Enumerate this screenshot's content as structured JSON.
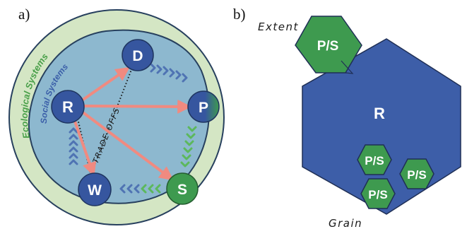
{
  "panel_a": {
    "label": "a)",
    "outer_label": "Ecological Systems",
    "inner_label": "Social Systems",
    "tradeoff_label": "TRADE-OFFS",
    "nodes": {
      "R": "R",
      "D": "D",
      "P": "P",
      "S": "S",
      "W": "W"
    }
  },
  "panel_b": {
    "label": "b)",
    "extent_label": "Extent",
    "grain_label": "Grain",
    "region_label": "R",
    "extent_hex_label": "P/S",
    "grain_hex_labels": [
      "P/S",
      "P/S",
      "P/S"
    ]
  },
  "colors": {
    "outer_green": "#d4e6c4",
    "inner_blue": "#8db8cf",
    "node_blue": "#36569f",
    "node_green": "#3e9a4f",
    "arrow_red": "#f08a80",
    "chevron_blue": "#4f73b3",
    "chevron_green": "#5cb85c",
    "hex_blue": "#3d5ea8",
    "hex_green": "#3e9a4f"
  }
}
